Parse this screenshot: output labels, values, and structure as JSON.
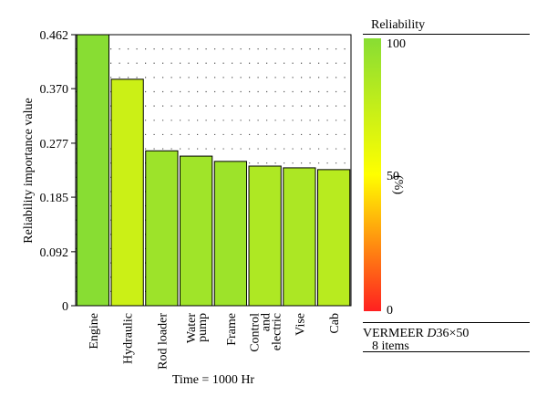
{
  "chart_data": {
    "type": "bar",
    "title": "",
    "xlabel": "Time = 1000 Hr",
    "ylabel": "Reliability importance value",
    "ylim": [
      0,
      0.462
    ],
    "yticks": [
      "0",
      "0.092",
      "0.185",
      "0.277",
      "0.370",
      "0.462"
    ],
    "yticks_values": [
      0,
      0.092,
      0.185,
      0.277,
      0.37,
      0.462
    ],
    "categories": [
      [
        "Engine"
      ],
      [
        "Hydraulic"
      ],
      [
        "Rod loader"
      ],
      [
        "Water",
        "pump"
      ],
      [
        "Frame"
      ],
      [
        "Control",
        "and",
        "electric"
      ],
      [
        "Vise"
      ],
      [
        "Cab"
      ]
    ],
    "values": [
      0.462,
      0.386,
      0.264,
      0.255,
      0.246,
      0.238,
      0.235,
      0.232
    ],
    "reliability_pct": [
      100,
      72,
      91,
      90,
      91,
      84,
      85,
      80
    ],
    "grid": "dotted"
  },
  "legend": {
    "title": "Reliability",
    "unit": "(%)",
    "max_label": "100",
    "mid_label": "50",
    "min_label": "0",
    "colors": {
      "high": "#88dd33",
      "mid": "#ffff00",
      "low": "#ff2020"
    }
  },
  "footer": {
    "model_prefix": "VERMEER ",
    "model_italic": "D",
    "model_suffix": "36×50",
    "items": "8 items"
  }
}
